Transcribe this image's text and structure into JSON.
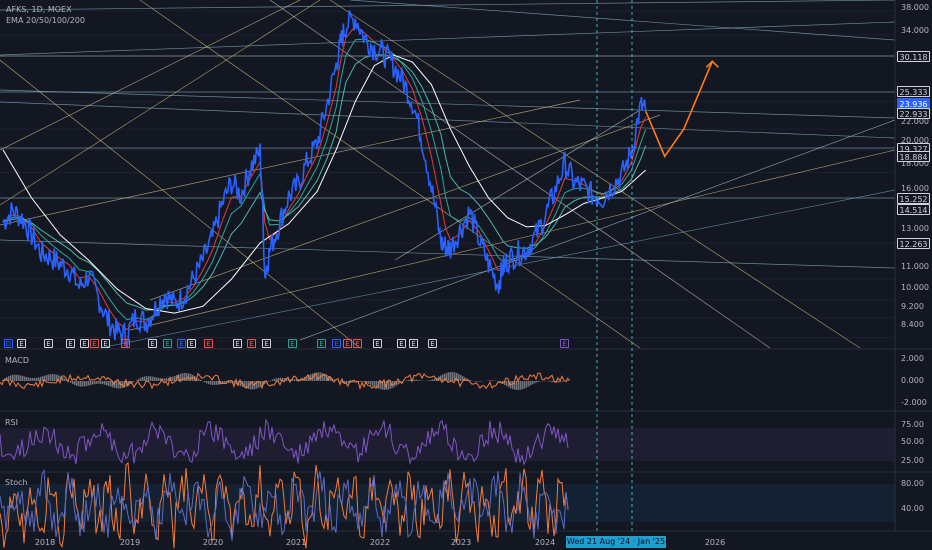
{
  "header": {
    "symbol_line": "AFKS, 1D, MOEX",
    "indicator_line": "EMA 20/50/100/200"
  },
  "panes": {
    "macd": {
      "label": "MACD",
      "ticks": [
        "2.000",
        "0.000",
        "-2.000"
      ]
    },
    "rsi": {
      "label": "RSI",
      "ticks": [
        "75.00",
        "50.00",
        "25.00"
      ]
    },
    "stoch": {
      "label": "Stoch",
      "ticks": [
        "80.00",
        "40.00"
      ]
    }
  },
  "price_axis": {
    "ticks": [
      "38.000",
      "34.000",
      "25.000",
      "22.000",
      "20.000",
      "18.000",
      "16.000",
      "13.000",
      "11.000",
      "10.000",
      "9.200",
      "8.400"
    ],
    "highlighted": [
      "30.118",
      "25.333",
      "23.936",
      "22.933",
      "19.327",
      "18.884",
      "15.252",
      "14.514",
      "12.263"
    ],
    "last_price": "23.936"
  },
  "time_axis": {
    "years": [
      "2018",
      "2019",
      "2020",
      "2021",
      "2022",
      "2023",
      "2024",
      "2025",
      "2026"
    ],
    "cursor_label": "Wed 21 Aug '24 · Jan '25"
  },
  "earnings_badges": [
    "D",
    "E",
    "E",
    "E",
    "E",
    "E",
    "E",
    "E",
    "E",
    "E",
    "E",
    "E",
    "E",
    "E",
    "E",
    "E",
    "E",
    "E",
    "E",
    "E",
    "E",
    "E",
    "E",
    "E",
    "E"
  ],
  "colors": {
    "background": "#131722",
    "price_line": "#2962ff",
    "ema20": "#e53935",
    "ema50": "#26a69a",
    "ema100": "#4db6ac",
    "ema200": "#ffffff",
    "projection": "#ff7a1a",
    "rsi": "#7e57c2",
    "stoch_k": "#f57c3a",
    "stoch_d": "#5c6bc0",
    "macd_hist": "#b2b5be"
  },
  "chart_data": {
    "type": "line",
    "title": "AFKS, 1D, MOEX",
    "log_scale": true,
    "ylim": [
      8.0,
      38.5
    ],
    "x_range": [
      2017.5,
      2026.9
    ],
    "series": [
      {
        "name": "AFKS",
        "x": [
          2017.5,
          2017.6,
          2017.7,
          2017.8,
          2017.9,
          2018.0,
          2018.1,
          2018.2,
          2018.3,
          2018.4,
          2018.5,
          2018.6,
          2018.7,
          2018.8,
          2018.9,
          2019.0,
          2019.1,
          2019.2,
          2019.3,
          2019.4,
          2019.5,
          2019.6,
          2019.7,
          2019.8,
          2019.9,
          2020.0,
          2020.1,
          2020.2,
          2020.25,
          2020.3,
          2020.4,
          2020.5,
          2020.6,
          2020.7,
          2020.8,
          2020.9,
          2021.0,
          2021.05,
          2021.1,
          2021.2,
          2021.3,
          2021.4,
          2021.5,
          2021.6,
          2021.7,
          2021.8,
          2021.9,
          2022.0,
          2022.1,
          2022.15,
          2022.2,
          2022.3,
          2022.4,
          2022.5,
          2022.6,
          2022.7,
          2022.75,
          2022.8,
          2022.9,
          2023.0,
          2023.1,
          2023.2,
          2023.3,
          2023.4,
          2023.5,
          2023.6,
          2023.7,
          2023.8,
          2023.9,
          2024.0,
          2024.1,
          2024.2,
          2024.25
        ],
        "values": [
          14.3,
          15.1,
          14.6,
          13.5,
          12.4,
          12.2,
          11.8,
          11.5,
          10.6,
          11.2,
          10.1,
          9.1,
          8.6,
          8.5,
          9.3,
          9.0,
          9.6,
          10.3,
          9.8,
          10.2,
          11.0,
          12.0,
          13.3,
          15.5,
          17.2,
          16.2,
          18.5,
          19.8,
          11.2,
          12.5,
          14.2,
          16.1,
          17.0,
          19.0,
          20.6,
          24.5,
          29.5,
          33.0,
          35.5,
          36.8,
          33.5,
          32.0,
          31.2,
          29.6,
          27.5,
          25.0,
          21.0,
          16.8,
          13.0,
          12.8,
          12.7,
          13.8,
          15.0,
          13.2,
          11.8,
          10.7,
          11.6,
          12.0,
          12.4,
          12.6,
          13.5,
          14.8,
          16.6,
          18.8,
          17.2,
          16.8,
          16.2,
          16.0,
          17.0,
          17.8,
          19.8,
          24.5,
          23.9
        ]
      },
      {
        "name": "EMA 200",
        "x": [
          2017.5,
          2017.8,
          2018.1,
          2018.4,
          2018.7,
          2019.0,
          2019.3,
          2019.6,
          2019.9,
          2020.2,
          2020.5,
          2020.8,
          2021.0,
          2021.2,
          2021.4,
          2021.6,
          2021.8,
          2022.0,
          2022.2,
          2022.4,
          2022.6,
          2022.8,
          2023.0,
          2023.2,
          2023.4,
          2023.6,
          2023.8,
          2024.0,
          2024.25
        ],
        "values": [
          20.0,
          16.0,
          13.5,
          12.0,
          10.5,
          9.6,
          9.4,
          9.7,
          11.0,
          13.0,
          14.2,
          16.5,
          20.0,
          25.0,
          29.5,
          31.0,
          30.0,
          27.0,
          22.0,
          18.5,
          16.0,
          14.6,
          14.0,
          14.1,
          14.8,
          15.6,
          16.0,
          16.5,
          18.2
        ]
      }
    ],
    "projection": {
      "name": "",
      "x": [
        2024.25,
        2024.45,
        2024.65,
        2024.95
      ],
      "values": [
        23.9,
        19.4,
        22.0,
        30.1
      ]
    }
  }
}
